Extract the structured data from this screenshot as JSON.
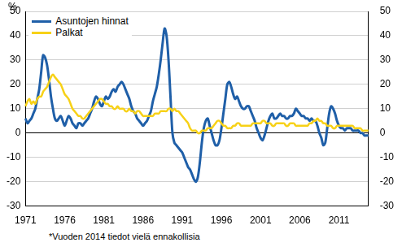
{
  "chart_data": {
    "type": "line",
    "ylabel": "%",
    "annotation": "*Vuoden 2014 tiedot vielä ennakollisia",
    "legend": "top-left",
    "grid": true,
    "categories": [
      "1971",
      null,
      null,
      null,
      null,
      null,
      null,
      null,
      null,
      null,
      null,
      null,
      null,
      null,
      null,
      null,
      null,
      null,
      null,
      null,
      "1976",
      null,
      null,
      null,
      null,
      null,
      null,
      null,
      null,
      null,
      null,
      null,
      null,
      null,
      null,
      null,
      null,
      null,
      null,
      null,
      "1981",
      null,
      null,
      null,
      null,
      null,
      null,
      null,
      null,
      null,
      null,
      null,
      null,
      null,
      null,
      null,
      null,
      null,
      null,
      null,
      "1986",
      null,
      null,
      null,
      null,
      null,
      null,
      null,
      null,
      null,
      null,
      null,
      null,
      null,
      null,
      null,
      null,
      null,
      null,
      null,
      "1991",
      null,
      null,
      null,
      null,
      null,
      null,
      null,
      null,
      null,
      null,
      null,
      null,
      null,
      null,
      null,
      null,
      null,
      null,
      null,
      "1996",
      null,
      null,
      null,
      null,
      null,
      null,
      null,
      null,
      null,
      null,
      null,
      null,
      null,
      null,
      null,
      null,
      null,
      null,
      null,
      "2001",
      null,
      null,
      null,
      null,
      null,
      null,
      null,
      null,
      null,
      null,
      null,
      null,
      null,
      null,
      null,
      null,
      null,
      null,
      null,
      "2006",
      null,
      null,
      null,
      null,
      null,
      null,
      null,
      null,
      null,
      null,
      null,
      null,
      null,
      null,
      null,
      null,
      null,
      null,
      null,
      "2011",
      null,
      null,
      null,
      null,
      null,
      null,
      null,
      null,
      null,
      null,
      null,
      null,
      null,
      null,
      null
    ],
    "series": [
      {
        "name": "Asuntojen hinnat",
        "color": "#1f5fa8",
        "values": [
          6,
          4,
          5,
          6,
          8,
          10,
          14,
          18,
          25,
          32,
          31,
          28,
          22,
          15,
          10,
          6,
          5,
          6,
          7,
          5,
          3,
          5,
          7,
          6,
          4,
          3,
          2,
          4,
          4,
          3,
          4,
          5,
          6,
          8,
          10,
          13,
          15,
          14,
          12,
          11,
          13,
          15,
          14,
          15,
          17,
          18,
          17,
          19,
          20,
          21,
          20,
          18,
          16,
          14,
          11,
          9,
          8,
          6,
          5,
          4,
          3,
          4,
          5,
          7,
          9,
          13,
          16,
          19,
          24,
          30,
          37,
          43,
          40,
          30,
          15,
          0,
          -4,
          -5,
          -6,
          -7,
          -8,
          -10,
          -12,
          -14,
          -15,
          -17,
          -19,
          -20,
          -18,
          -12,
          -4,
          2,
          5,
          6,
          3,
          0,
          -3,
          -5,
          -5,
          -3,
          2,
          8,
          14,
          20,
          21,
          19,
          16,
          14,
          15,
          13,
          11,
          10,
          10,
          11,
          11,
          9,
          7,
          5,
          2,
          0,
          -2,
          -3,
          -1,
          2,
          5,
          7,
          8,
          6,
          6,
          7,
          8,
          7,
          7,
          6,
          6,
          7,
          7,
          8,
          10,
          9,
          8,
          7,
          7,
          6,
          6,
          5,
          6,
          5,
          5,
          3,
          0,
          -2,
          -5,
          -4,
          2,
          8,
          11,
          10,
          8,
          5,
          3,
          2,
          2,
          1,
          2,
          2,
          2,
          1,
          1,
          1,
          1,
          0,
          0,
          -1,
          -1,
          -1
        ]
      },
      {
        "name": "Palkat",
        "color": "#f7d117",
        "values": [
          11,
          13,
          14,
          12,
          13,
          12,
          14,
          15,
          15,
          17,
          18,
          19,
          21,
          23,
          24,
          23,
          22,
          21,
          20,
          18,
          16,
          15,
          14,
          12,
          10,
          9,
          8,
          7,
          7,
          6,
          6,
          7,
          8,
          9,
          10,
          11,
          12,
          13,
          14,
          14,
          13,
          12,
          12,
          11,
          11,
          10,
          10,
          11,
          10,
          10,
          10,
          9,
          9,
          10,
          9,
          9,
          8,
          9,
          9,
          8,
          7,
          7,
          7,
          7,
          7,
          7,
          8,
          8,
          8,
          9,
          9,
          9,
          9,
          10,
          10,
          9,
          10,
          9,
          9,
          8,
          7,
          6,
          5,
          4,
          2,
          1,
          1,
          1,
          0,
          0,
          1,
          1,
          1,
          2,
          2,
          2,
          3,
          4,
          5,
          5,
          4,
          3,
          3,
          2,
          2,
          2,
          3,
          3,
          4,
          4,
          3,
          3,
          3,
          3,
          3,
          3,
          4,
          4,
          4,
          4,
          4,
          5,
          5,
          4,
          4,
          4,
          3,
          3,
          4,
          4,
          4,
          4,
          4,
          3,
          3,
          4,
          4,
          4,
          3,
          3,
          3,
          3,
          3,
          3,
          3,
          4,
          4,
          5,
          5,
          6,
          5,
          5,
          4,
          4,
          3,
          3,
          3,
          2,
          2,
          3,
          3,
          3,
          3,
          3,
          3,
          3,
          3,
          3,
          2,
          2,
          2,
          2,
          1,
          1,
          1,
          1
        ]
      }
    ],
    "ylim": [
      -30,
      50
    ],
    "yticks": [
      -30,
      -20,
      -10,
      0,
      10,
      20,
      30,
      40,
      50
    ],
    "y2lim": [
      -30,
      50
    ],
    "y2ticks": [
      -30,
      -20,
      -10,
      0,
      10,
      20,
      30,
      40,
      50
    ]
  }
}
